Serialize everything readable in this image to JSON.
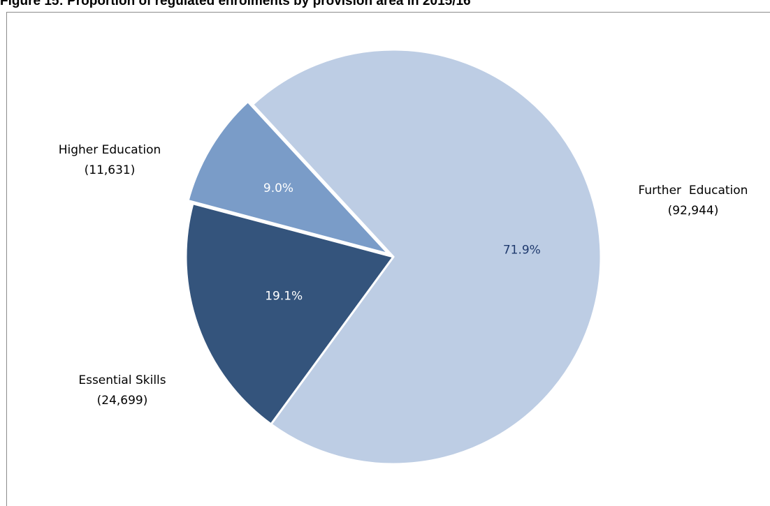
{
  "title": "Figure 15: Proportion of regulated enrolments by provision area in 2015/16",
  "chart_data": {
    "type": "pie",
    "start_angle_deg": 317.3,
    "direction": "clockwise",
    "slices": [
      {
        "name": "Further  Education",
        "count": "(92,944)",
        "percent_label": "71.9%",
        "value": 71.9,
        "color": "#bdcde4",
        "percent_color": "#1f3a6e",
        "exploded": false
      },
      {
        "name": "Essential Skills",
        "count": "(24,699)",
        "percent_label": "19.1%",
        "value": 19.1,
        "color": "#34547c",
        "percent_color": "#ffffff",
        "exploded": false
      },
      {
        "name": "Higher Education",
        "count": "(11,631)",
        "percent_label": "9.0%",
        "value": 9.0,
        "color": "#7a9cc8",
        "percent_color": "#ffffff",
        "exploded": true
      }
    ]
  }
}
